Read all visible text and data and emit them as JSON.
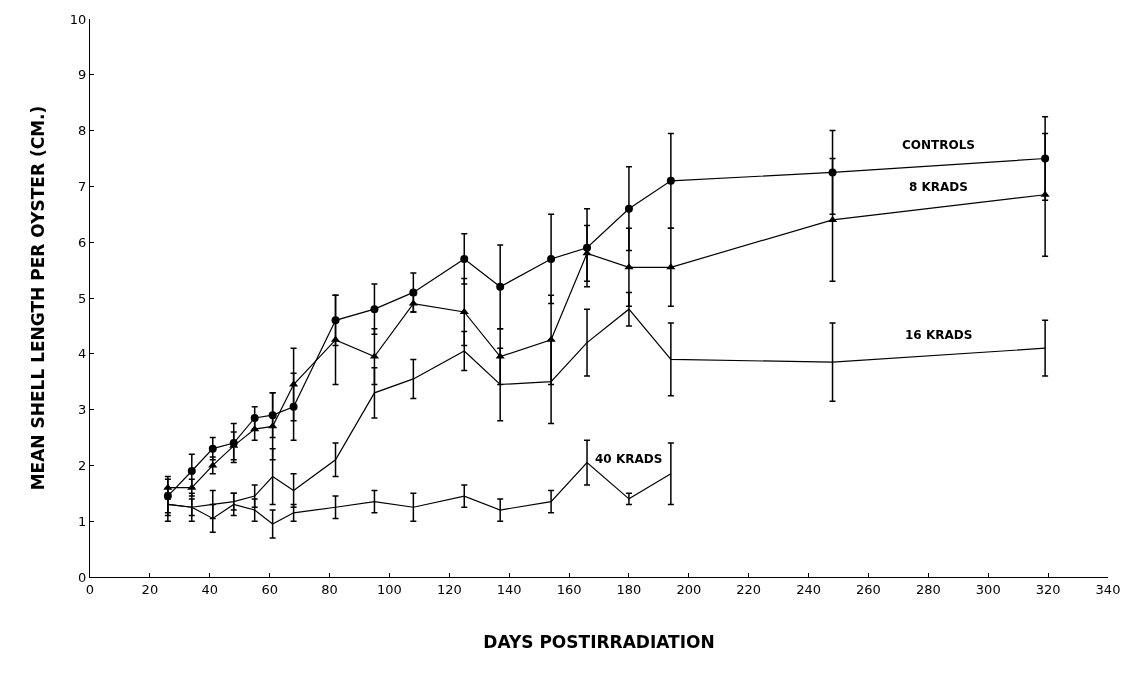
{
  "chart_data": {
    "type": "line",
    "xlabel": "DAYS POSTIRRADIATION",
    "ylabel": "MEAN SHELL LENGTH PER OYSTER (CM.)",
    "xlim": [
      0,
      340
    ],
    "xticks": [
      0,
      20,
      40,
      60,
      80,
      100,
      120,
      140,
      160,
      180,
      200,
      220,
      240,
      260,
      280,
      300,
      320,
      340
    ],
    "ylim": [
      0,
      10
    ],
    "yticks": [
      0,
      1,
      2,
      3,
      4,
      5,
      6,
      7,
      8,
      9,
      10
    ],
    "grid": false,
    "legend": false,
    "series": [
      {
        "name": "CONTROLS",
        "color": "#000000",
        "marker": "circle",
        "x": [
          26,
          34,
          41,
          48,
          55,
          61,
          68,
          82,
          95,
          108,
          125,
          137,
          154,
          166,
          180,
          194,
          248,
          319
        ],
        "values": [
          1.45,
          1.9,
          2.3,
          2.4,
          2.85,
          2.9,
          3.05,
          4.6,
          4.8,
          5.1,
          5.7,
          5.2,
          5.7,
          5.9,
          6.6,
          7.1,
          7.25,
          7.5
        ],
        "errors": [
          0.3,
          0.3,
          0.2,
          0.35,
          0.2,
          0.4,
          0.6,
          0.45,
          0.45,
          0.35,
          0.45,
          0.75,
          0.8,
          0.7,
          0.75,
          0.85,
          0.75,
          0.75
        ]
      },
      {
        "name": "8 KRADS",
        "color": "#000000",
        "marker": "triangle",
        "x": [
          26,
          34,
          41,
          48,
          55,
          61,
          68,
          82,
          95,
          108,
          125,
          137,
          154,
          166,
          180,
          194,
          248,
          319
        ],
        "values": [
          1.6,
          1.6,
          2.0,
          2.35,
          2.65,
          2.7,
          3.45,
          4.25,
          3.95,
          4.9,
          4.75,
          3.95,
          4.25,
          5.8,
          5.55,
          5.55,
          6.4,
          6.85
        ],
        "errors": [
          0.2,
          0.15,
          0.15,
          0.25,
          0.2,
          0.6,
          0.65,
          0.8,
          0.5,
          0.15,
          0.6,
          0.5,
          0.8,
          0.5,
          0.7,
          0.7,
          1.1,
          1.1
        ]
      },
      {
        "name": "16 KRADS",
        "color": "#000000",
        "marker": "none",
        "x": [
          26,
          34,
          41,
          48,
          55,
          61,
          68,
          82,
          95,
          108,
          125,
          137,
          154,
          166,
          180,
          194,
          248,
          319
        ],
        "values": [
          1.3,
          1.25,
          1.3,
          1.35,
          1.45,
          1.8,
          1.55,
          2.1,
          3.3,
          3.55,
          4.05,
          3.45,
          3.5,
          4.2,
          4.8,
          3.9,
          3.85,
          4.1
        ],
        "errors": [
          0.3,
          0.25,
          0.25,
          0.15,
          0.2,
          0.5,
          0.3,
          0.3,
          0.45,
          0.35,
          0.35,
          0.65,
          0.75,
          0.6,
          0.3,
          0.65,
          0.7,
          0.5
        ]
      },
      {
        "name": "40 KRADS",
        "color": "#000000",
        "marker": "none",
        "x": [
          26,
          34,
          41,
          48,
          55,
          61,
          68,
          82,
          95,
          108,
          125,
          137,
          154,
          166,
          180,
          194
        ],
        "values": [
          1.3,
          1.25,
          1.05,
          1.3,
          1.2,
          0.95,
          1.15,
          1.25,
          1.35,
          1.25,
          1.45,
          1.2,
          1.35,
          2.05,
          1.4,
          1.85
        ],
        "errors": [
          0.2,
          0.15,
          0.25,
          0.2,
          0.2,
          0.25,
          0.15,
          0.2,
          0.2,
          0.25,
          0.2,
          0.2,
          0.2,
          0.4,
          0.1,
          0.55
        ]
      }
    ]
  }
}
